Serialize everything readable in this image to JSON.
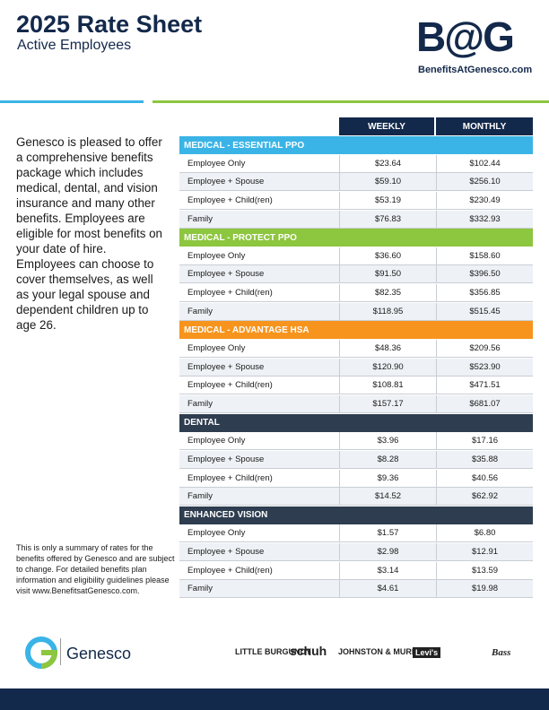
{
  "header": {
    "title": "2025 Rate Sheet",
    "subtitle": "Active Employees",
    "logo": "B@G",
    "logo_url": "BenefitsAtGenesco.com"
  },
  "intro": "Genesco is pleased to offer a comprehensive benefits package which includes medical, dental, and vision insurance and many other benefits. Employees are eligible for most benefits on your date of hire. Employees can choose to cover themselves, as well as your legal spouse and dependent children up to age 26.",
  "note": "This is only a summary of rates for the benefits offered by Genesco and are subject to change. For detailed benefits plan information and eligibility guidelines please visit www.BenefitsatGenesco.com.",
  "table": {
    "columns": [
      "WEEKLY",
      "MONTHLY"
    ],
    "sections": [
      {
        "name": "MEDICAL - ESSENTIAL PPO",
        "rows": [
          [
            "Employee Only",
            "$23.64",
            "$102.44"
          ],
          [
            "Employee + Spouse",
            "$59.10",
            "$256.10"
          ],
          [
            "Employee + Child(ren)",
            "$53.19",
            "$230.49"
          ],
          [
            "Family",
            "$76.83",
            "$332.93"
          ]
        ]
      },
      {
        "name": "MEDICAL - PROTECT PPO",
        "rows": [
          [
            "Employee Only",
            "$36.60",
            "$158.60"
          ],
          [
            "Employee + Spouse",
            "$91.50",
            "$396.50"
          ],
          [
            "Employee + Child(ren)",
            "$82.35",
            "$356.85"
          ],
          [
            "Family",
            "$118.95",
            "$515.45"
          ]
        ]
      },
      {
        "name": "MEDICAL - ADVANTAGE HSA",
        "rows": [
          [
            "Employee Only",
            "$48.36",
            "$209.56"
          ],
          [
            "Employee + Spouse",
            "$120.90",
            "$523.90"
          ],
          [
            "Employee + Child(ren)",
            "$108.81",
            "$471.51"
          ],
          [
            "Family",
            "$157.17",
            "$681.07"
          ]
        ]
      },
      {
        "name": "DENTAL",
        "rows": [
          [
            "Employee Only",
            "$3.96",
            "$17.16"
          ],
          [
            "Employee + Spouse",
            "$8.28",
            "$35.88"
          ],
          [
            "Employee + Child(ren)",
            "$9.36",
            "$40.56"
          ],
          [
            "Family",
            "$14.52",
            "$62.92"
          ]
        ]
      },
      {
        "name": "ENHANCED VISION",
        "rows": [
          [
            "Employee Only",
            "$1.57",
            "$6.80"
          ],
          [
            "Employee + Spouse",
            "$2.98",
            "$12.91"
          ],
          [
            "Employee + Child(ren)",
            "$3.14",
            "$13.59"
          ],
          [
            "Family",
            "$4.61",
            "$19.98"
          ]
        ]
      }
    ]
  },
  "footer": {
    "brand": "Genesco",
    "brands": [
      "LITTLE BURGUNDY",
      "schuh",
      "JOHNSTON & MURPHY",
      "Levi's",
      "Bass"
    ]
  }
}
